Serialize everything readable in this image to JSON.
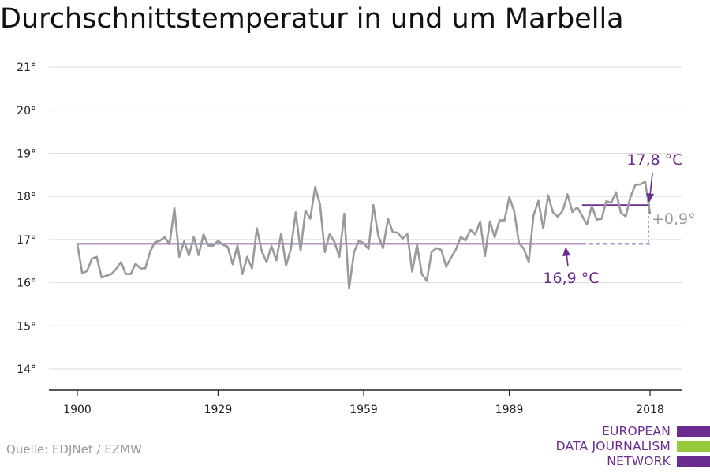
{
  "title": "Durchschnittstemperatur in und um Marbella",
  "source": "Quelle: EDJNet / EZMW",
  "logo": {
    "lines": [
      "EUROPEAN",
      "DATA JOURNALISM",
      "NETWORK"
    ],
    "colors": {
      "purple": "#6a2c8e",
      "green": "#97c93c"
    }
  },
  "colors": {
    "series": "#9a9a9a",
    "reference": "#6a2c8e",
    "grid": "#dddddd",
    "axis": "#222222"
  },
  "chart_data": {
    "type": "line",
    "title": "Durchschnittstemperatur in und um Marbella",
    "xlabel": "",
    "ylabel": "",
    "xlim": [
      1900,
      2018
    ],
    "ylim": [
      14,
      21
    ],
    "x_ticks": [
      1900,
      1929,
      1959,
      1989,
      2018
    ],
    "y_ticks": [
      14,
      15,
      16,
      17,
      18,
      19,
      20,
      21
    ],
    "y_tick_labels": [
      "14°",
      "15°",
      "16°",
      "17°",
      "18°",
      "19°",
      "20°",
      "21°"
    ],
    "grid": "horizontal",
    "series": [
      {
        "x": [
          1900,
          1901,
          1902,
          1903,
          1904,
          1905,
          1906,
          1907,
          1908,
          1909,
          1910,
          1911,
          1912,
          1913,
          1914,
          1915,
          1916,
          1917,
          1918,
          1919,
          1920,
          1921,
          1922,
          1923,
          1924,
          1925,
          1926,
          1927,
          1928,
          1929,
          1930,
          1931,
          1932,
          1933,
          1934,
          1935,
          1936,
          1937,
          1938,
          1939,
          1940,
          1941,
          1942,
          1943,
          1944,
          1945,
          1946,
          1947,
          1948,
          1949,
          1950,
          1951,
          1952,
          1953,
          1954,
          1955,
          1956,
          1957,
          1958,
          1959,
          1960,
          1961,
          1962,
          1963,
          1964,
          1965,
          1966,
          1967,
          1968,
          1969,
          1970,
          1971,
          1972,
          1973,
          1974,
          1975,
          1976,
          1977,
          1978,
          1979,
          1980,
          1981,
          1982,
          1983,
          1984,
          1985,
          1986,
          1987,
          1988,
          1989,
          1990,
          1991,
          1992,
          1993,
          1994,
          1995,
          1996,
          1997,
          1998,
          1999,
          2000,
          2001,
          2002,
          2003,
          2004,
          2005,
          2006,
          2007,
          2008,
          2009,
          2010,
          2011,
          2012,
          2013,
          2014,
          2015,
          2016,
          2017,
          2018
        ],
        "values": [
          16.9,
          16.22,
          16.27,
          16.56,
          16.6,
          16.12,
          16.16,
          16.2,
          16.32,
          16.48,
          16.2,
          16.2,
          16.44,
          16.33,
          16.33,
          16.72,
          16.94,
          16.97,
          17.06,
          16.89,
          17.73,
          16.6,
          16.96,
          16.63,
          17.06,
          16.64,
          17.12,
          16.86,
          16.86,
          16.97,
          16.88,
          16.83,
          16.43,
          16.86,
          16.2,
          16.6,
          16.33,
          17.26,
          16.73,
          16.48,
          16.85,
          16.52,
          17.14,
          16.4,
          16.78,
          17.63,
          16.74,
          17.67,
          17.48,
          18.22,
          17.82,
          16.71,
          17.13,
          16.94,
          16.6,
          17.6,
          15.86,
          16.7,
          16.97,
          16.92,
          16.78,
          17.8,
          17.09,
          16.8,
          17.48,
          17.17,
          17.16,
          17.02,
          17.13,
          16.26,
          16.88,
          16.2,
          16.04,
          16.71,
          16.8,
          16.76,
          16.37,
          16.58,
          16.77,
          17.06,
          16.98,
          17.23,
          17.12,
          17.42,
          16.62,
          17.42,
          17.05,
          17.45,
          17.44,
          17.98,
          17.67,
          16.91,
          16.79,
          16.48,
          17.56,
          17.9,
          17.26,
          18.03,
          17.63,
          17.53,
          17.67,
          18.05,
          17.64,
          17.75,
          17.55,
          17.35,
          17.78,
          17.46,
          17.48,
          17.89,
          17.85,
          18.1,
          17.62,
          17.54,
          18.0,
          18.27,
          18.28,
          18.34,
          17.6
        ]
      }
    ],
    "reference_lines": [
      {
        "label": "16,9 °C",
        "value": 16.9
      },
      {
        "label": "17,8 °C",
        "value": 17.8
      }
    ],
    "difference_label": "+0,9°"
  }
}
